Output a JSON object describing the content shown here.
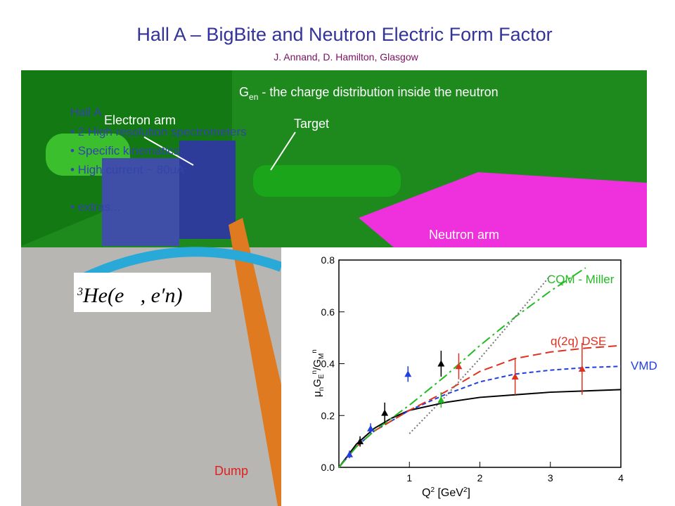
{
  "slide": {
    "title": "Hall A – BigBite and Neutron Electric Form Factor",
    "subtitle": "J. Annand, D. Hamilton, Glasgow",
    "heading": {
      "symbol": "G",
      "subscript": "en",
      "text": " - the charge distribution inside the neutron"
    },
    "labels": {
      "electron_arm": "Electron arm",
      "target": "Target",
      "neutron_arm": "Neutron arm",
      "dump": "Dump"
    },
    "bullets": [
      "Hall A",
      "• 2 High resolution spectrometers",
      "• Specific kinematics",
      "• High current ~ 80uA",
      "• extras..."
    ],
    "reaction": {
      "superscript": "3",
      "text": "He(e⃗, e′n)"
    }
  },
  "chart_data": {
    "type": "line",
    "x_label": [
      {
        "text": "Q"
      },
      {
        "text": "2",
        "sup": true
      },
      {
        "text": "  [GeV"
      },
      {
        "text": "2",
        "sup": true
      },
      {
        "text": "]"
      }
    ],
    "y_label": [
      {
        "text": "μ"
      },
      {
        "text": "n",
        "sub": true
      },
      {
        "text": "G"
      },
      {
        "text": "E",
        "sub": true
      },
      {
        "text": "n",
        "sup": true
      },
      {
        "text": "/G"
      },
      {
        "text": "M",
        "sub": true
      },
      {
        "text": "n",
        "sup": true
      }
    ],
    "x": [
      0,
      0.25,
      0.5,
      0.75,
      1,
      1.5,
      2,
      2.5,
      3,
      3.5,
      4
    ],
    "series": [
      {
        "color": "#000000",
        "dash": "none",
        "values": [
          0,
          0.09,
          0.15,
          0.19,
          0.22,
          0.25,
          0.27,
          0.28,
          0.29,
          0.295,
          0.3
        ]
      },
      {
        "name": "VMD",
        "color": "#1f3fe0",
        "dash": "6 4",
        "values": [
          0,
          0.08,
          0.14,
          0.18,
          0.22,
          0.28,
          0.33,
          0.36,
          0.375,
          0.385,
          0.39
        ]
      },
      {
        "name": "q(2q) DSE",
        "color": "#e03020",
        "dash": "12 6",
        "values": [
          0,
          0.08,
          0.14,
          0.18,
          0.22,
          0.29,
          0.37,
          0.42,
          0.445,
          0.46,
          0.47
        ]
      },
      {
        "name": "CQM - Miller",
        "color": "#22bb22",
        "dash": "14 5 3 5",
        "values": [
          0,
          0.08,
          0.14,
          0.19,
          0.24,
          0.35,
          0.47,
          0.58,
          0.68,
          0.77,
          null
        ]
      },
      {
        "color": "#777777",
        "dash": "2 3",
        "values": [
          null,
          null,
          null,
          null,
          0.13,
          0.27,
          0.42,
          0.58,
          0.74,
          null,
          null
        ]
      }
    ],
    "points": {
      "x": [
        0.15,
        0.3,
        0.45,
        0.65,
        0.98,
        1.45,
        1.45,
        1.7,
        2.5,
        3.45
      ],
      "values": [
        0.05,
        0.1,
        0.15,
        0.21,
        0.36,
        0.4,
        0.26,
        0.39,
        0.35,
        0.38
      ],
      "errors": [
        0.015,
        0.02,
        0.02,
        0.04,
        0.03,
        0.05,
        0.03,
        0.05,
        0.07,
        0.1
      ],
      "colors": [
        "#1f3fe0",
        "#000000",
        "#1f3fe0",
        "#000000",
        "#1f3fe0",
        "#000000",
        "#22bb22",
        "#e03020",
        "#e03020",
        "#e03020"
      ]
    },
    "xlim": [
      0,
      4
    ],
    "ylim": [
      0,
      0.8
    ],
    "xticks": [
      1,
      2,
      3,
      4
    ],
    "yticks": [
      {
        "value": 0,
        "label": "0.0"
      },
      0.2,
      0.4,
      0.6,
      0.8
    ]
  }
}
